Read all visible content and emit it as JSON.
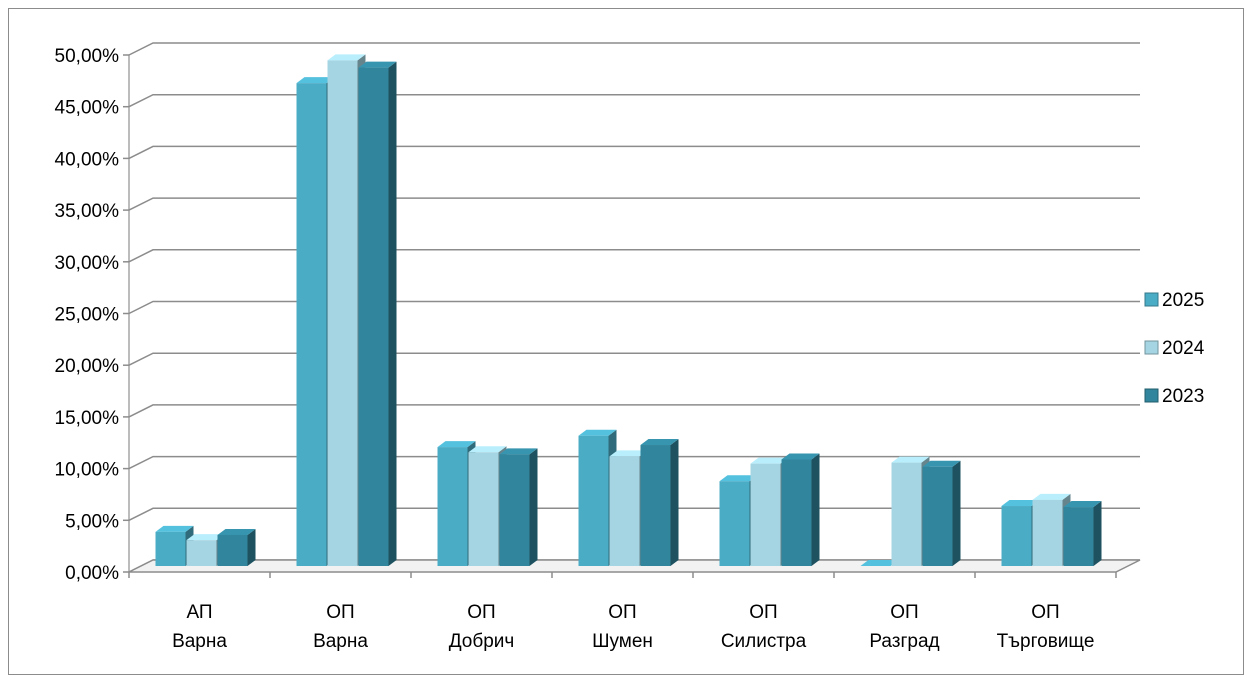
{
  "chart_data": {
    "type": "bar",
    "title": "",
    "xlabel": "",
    "ylabel": "",
    "ylim": [
      0,
      50
    ],
    "y_ticks": [
      "0,00%",
      "5,00%",
      "10,00%",
      "15,00%",
      "20,00%",
      "25,00%",
      "30,00%",
      "35,00%",
      "40,00%",
      "45,00%",
      "50,00%"
    ],
    "y_step": 5,
    "grid": true,
    "legend_position": "right",
    "categories": [
      [
        "АП",
        "Варна"
      ],
      [
        "ОП",
        "Варна"
      ],
      [
        "ОП",
        "Добрич"
      ],
      [
        "ОП",
        "Шумен"
      ],
      [
        "ОП",
        "Силистра"
      ],
      [
        "ОП",
        "Разград"
      ],
      [
        "ОП",
        "Търговище"
      ]
    ],
    "series": [
      {
        "name": "2025",
        "color": "#4bacc6",
        "values": [
          3.3,
          46.7,
          11.5,
          12.6,
          8.2,
          0.0,
          5.8
        ]
      },
      {
        "name": "2024",
        "color": "#a5d5e2",
        "values": [
          2.5,
          48.9,
          11.0,
          10.6,
          9.9,
          10.0,
          6.4
        ]
      },
      {
        "name": "2023",
        "color": "#31859c",
        "values": [
          3.0,
          48.2,
          10.8,
          11.7,
          10.3,
          9.6,
          5.7
        ]
      }
    ]
  }
}
